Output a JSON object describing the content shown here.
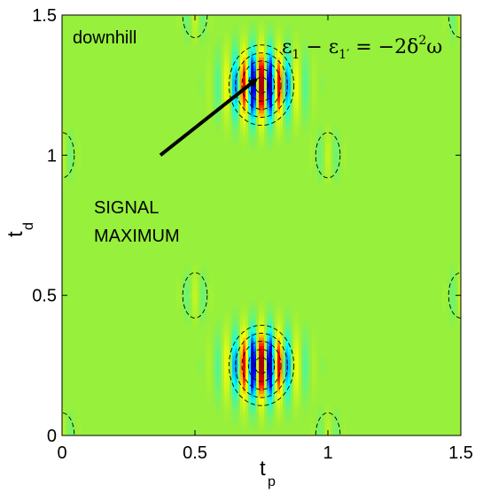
{
  "chart_data": {
    "type": "heatmap",
    "xlabel": "t",
    "xlabel_sub": "p",
    "ylabel": "t",
    "ylabel_sub": "d",
    "xlim": [
      0,
      1.5
    ],
    "ylim": [
      0,
      1.5
    ],
    "x_ticks": [
      0,
      0.5,
      1,
      1.5
    ],
    "y_ticks": [
      0,
      0.5,
      1,
      1.5
    ],
    "x_tick_labels": [
      "0",
      "0.5",
      "1",
      "1.5"
    ],
    "y_tick_labels": [
      "0",
      "0.5",
      "1",
      "1.5"
    ],
    "background_color": "#96f03c",
    "colormap": [
      "#00008f",
      "#0000ff",
      "#00ffff",
      "#96f03c",
      "#ffff00",
      "#ff0000",
      "#800000"
    ],
    "panel_label": "downhill",
    "equation": {
      "left": "ε",
      "sub1": "1",
      "minus": " − ε",
      "sub2": "1′",
      "rhs": " = −2δ",
      "sup": "2",
      "tail": "ω"
    },
    "annotation": {
      "lines": [
        "SIGNAL",
        "MAXIMUM"
      ],
      "arrow_from": [
        0.37,
        1.0
      ],
      "arrow_to": [
        0.73,
        1.27
      ]
    },
    "peaks": [
      {
        "tp": 0.75,
        "td": 1.25,
        "amplitude": 1.0,
        "sigma_tp": 0.085,
        "sigma_td": 0.085,
        "freq": 15
      },
      {
        "tp": 0.75,
        "td": 0.25,
        "amplitude": 1.0,
        "sigma_tp": 0.085,
        "sigma_td": 0.085,
        "freq": 15
      },
      {
        "tp": 0.0,
        "td": 1.0,
        "amplitude": 0.12,
        "sigma_tp": 0.04,
        "sigma_td": 0.06,
        "freq": 15
      },
      {
        "tp": 1.0,
        "td": 1.0,
        "amplitude": 0.14,
        "sigma_tp": 0.04,
        "sigma_td": 0.06,
        "freq": 15
      },
      {
        "tp": 1.5,
        "td": 1.5,
        "amplitude": 0.14,
        "sigma_tp": 0.04,
        "sigma_td": 0.06,
        "freq": 15
      },
      {
        "tp": 0.5,
        "td": 1.5,
        "amplitude": 0.14,
        "sigma_tp": 0.04,
        "sigma_td": 0.06,
        "freq": 15
      },
      {
        "tp": 0.5,
        "td": 0.5,
        "amplitude": 0.14,
        "sigma_tp": 0.04,
        "sigma_td": 0.06,
        "freq": 15
      },
      {
        "tp": 1.5,
        "td": 0.5,
        "amplitude": 0.14,
        "sigma_tp": 0.04,
        "sigma_td": 0.06,
        "freq": 15
      },
      {
        "tp": 0.0,
        "td": 0.0,
        "amplitude": 0.12,
        "sigma_tp": 0.04,
        "sigma_td": 0.06,
        "freq": 15
      },
      {
        "tp": 1.0,
        "td": 0.0,
        "amplitude": 0.12,
        "sigma_tp": 0.04,
        "sigma_td": 0.06,
        "freq": 15
      }
    ],
    "contour_levels": [
      0.25,
      0.5,
      0.75,
      1.0,
      1.25
    ],
    "contour_style": "dashed"
  }
}
